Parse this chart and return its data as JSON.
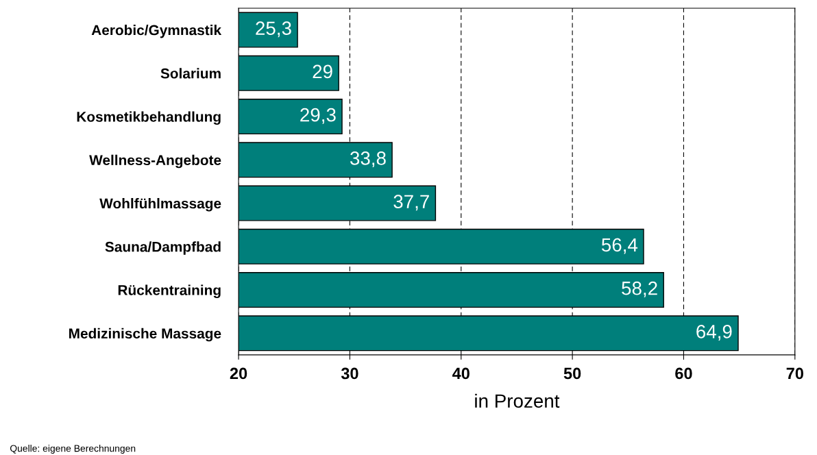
{
  "chart_data": {
    "type": "bar",
    "orientation": "horizontal",
    "xlabel": "in Prozent",
    "categories": [
      "Aerobic/Gymnastik",
      "Solarium",
      "Kosmetikbehandlung",
      "Wellness-Angebote",
      "Wohlfühlmassage",
      "Sauna/Dampfbad",
      "Rückentraining",
      "Medizinische Massage"
    ],
    "values": [
      25.3,
      29,
      29.3,
      33.8,
      37.7,
      56.4,
      58.2,
      64.9
    ],
    "value_labels": [
      "25,3",
      "29",
      "29,3",
      "33,8",
      "37,7",
      "56,4",
      "58,2",
      "64,9"
    ],
    "color": "#007f7b",
    "xlim": [
      20,
      70
    ],
    "xticks": [
      20,
      30,
      40,
      50,
      60,
      70
    ],
    "grid": "x",
    "annotations": [
      "Quelle: eigene Berechnungen"
    ]
  }
}
